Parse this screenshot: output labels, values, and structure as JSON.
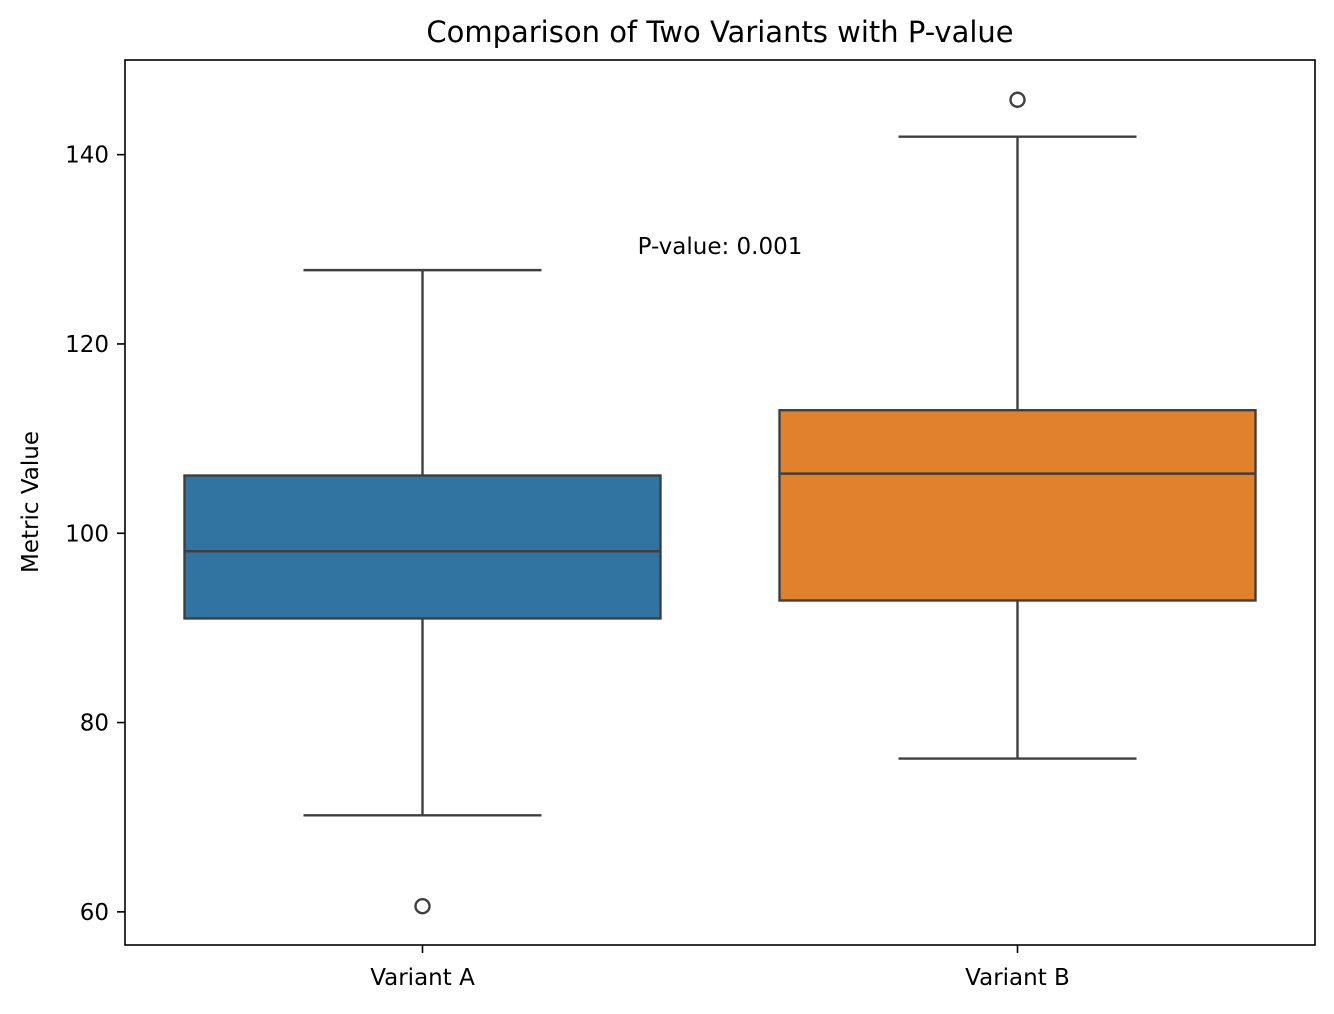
{
  "chart_data": {
    "type": "box",
    "title": "Comparison of Two Variants with P-value",
    "xlabel": "",
    "ylabel": "Metric Value",
    "ylim": [
      56.5,
      150
    ],
    "yticks": [
      60,
      80,
      100,
      120,
      140
    ],
    "grid": false,
    "categories": [
      "Variant A",
      "Variant B"
    ],
    "boxes": [
      {
        "label": "Variant A",
        "color": "#3274a1",
        "whislo": 70.2,
        "q1": 91.0,
        "median": 98.1,
        "q3": 106.1,
        "whishi": 127.8,
        "fliers": [
          60.6
        ]
      },
      {
        "label": "Variant B",
        "color": "#e1812c",
        "whislo": 76.2,
        "q1": 92.9,
        "median": 106.3,
        "q3": 113.0,
        "whishi": 141.9,
        "fliers": [
          145.8
        ]
      }
    ],
    "annotations": [
      {
        "text": "P-value: 0.001",
        "x": 0.5,
        "y": 129.5
      }
    ]
  }
}
